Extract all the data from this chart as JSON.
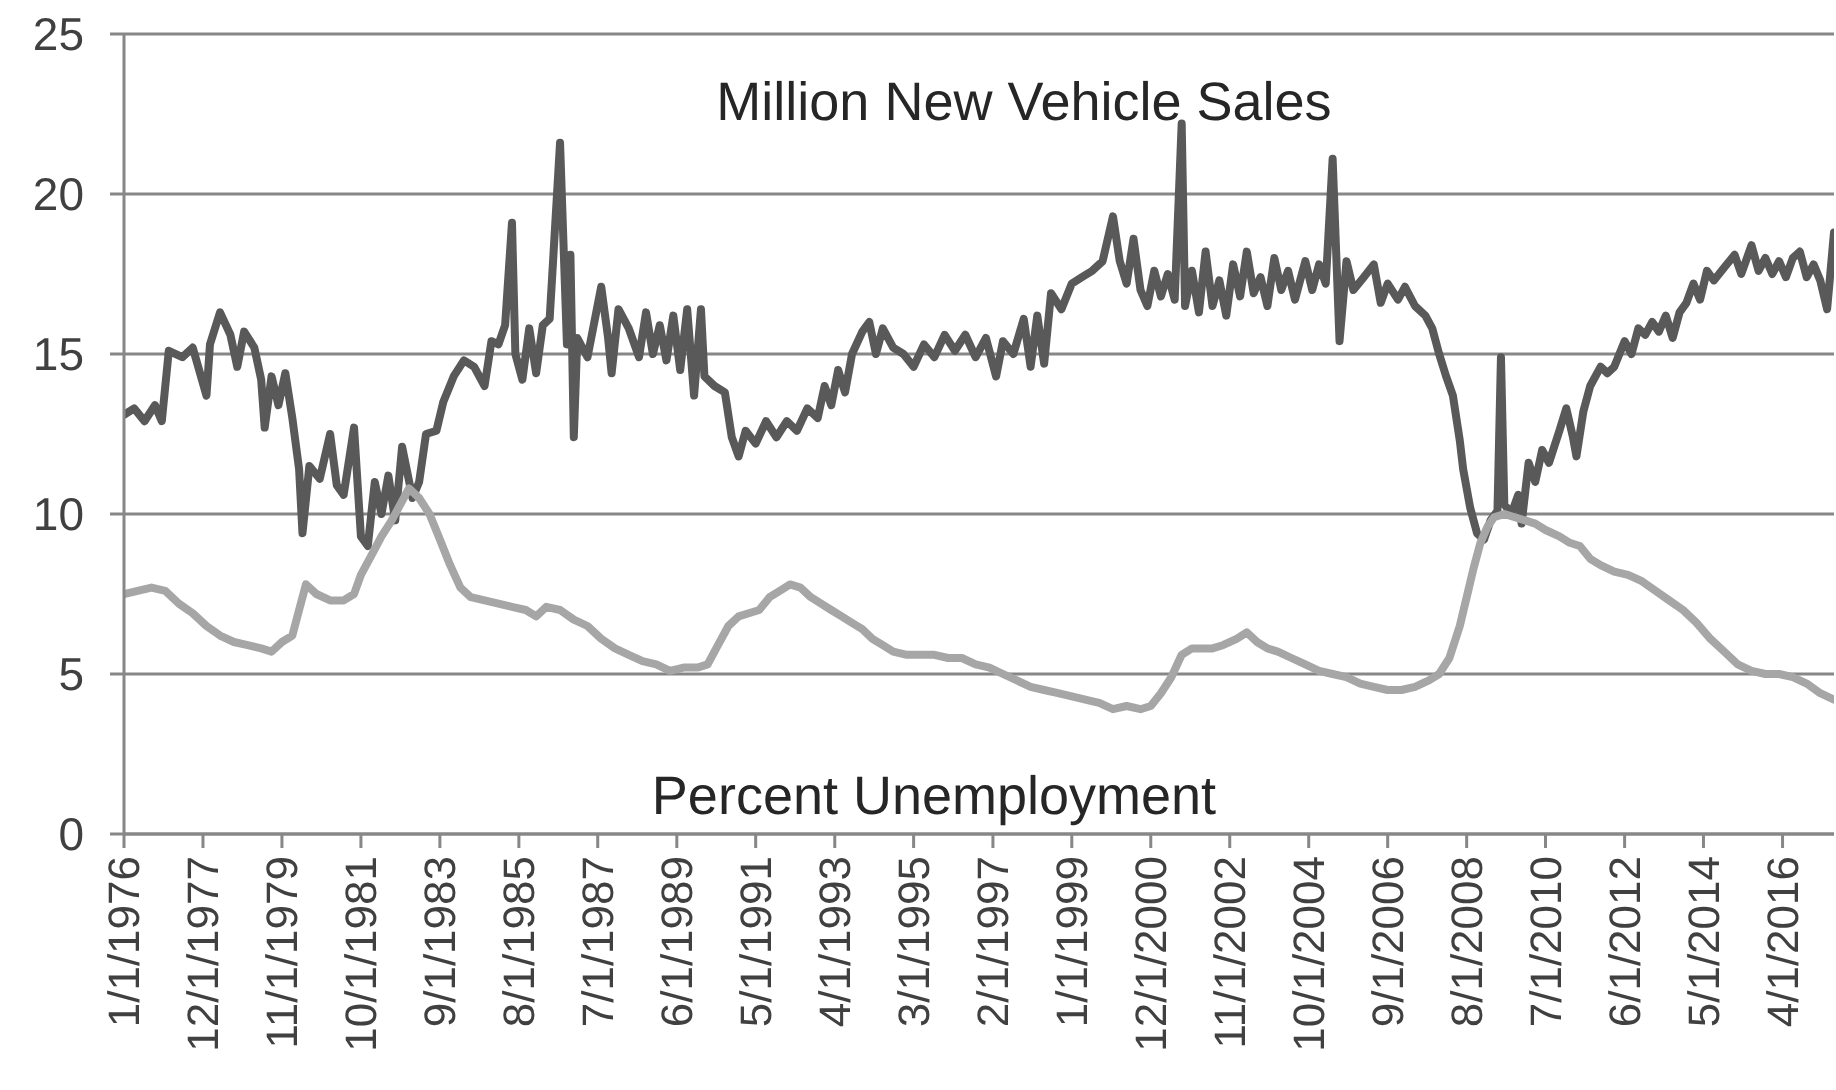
{
  "chart_data": {
    "type": "line",
    "xlim": [
      "1976-01",
      "2017-07"
    ],
    "xticks": [
      {
        "value": "1976-01",
        "label": "1/1/1976"
      },
      {
        "value": "1977-12",
        "label": "12/1/1977"
      },
      {
        "value": "1979-11",
        "label": "11/1/1979"
      },
      {
        "value": "1981-10",
        "label": "10/1/1981"
      },
      {
        "value": "1983-09",
        "label": "9/1/1983"
      },
      {
        "value": "1985-08",
        "label": "8/1/1985"
      },
      {
        "value": "1987-07",
        "label": "7/1/1987"
      },
      {
        "value": "1989-06",
        "label": "6/1/1989"
      },
      {
        "value": "1991-05",
        "label": "5/1/1991"
      },
      {
        "value": "1993-04",
        "label": "4/1/1993"
      },
      {
        "value": "1995-03",
        "label": "3/1/1995"
      },
      {
        "value": "1997-02",
        "label": "2/1/1997"
      },
      {
        "value": "1999-01",
        "label": "1/1/1999"
      },
      {
        "value": "2000-12",
        "label": "12/1/2000"
      },
      {
        "value": "2002-11",
        "label": "11/1/2002"
      },
      {
        "value": "2004-10",
        "label": "10/1/2004"
      },
      {
        "value": "2006-09",
        "label": "9/1/2006"
      },
      {
        "value": "2008-08",
        "label": "8/1/2008"
      },
      {
        "value": "2010-07",
        "label": "7/1/2010"
      },
      {
        "value": "2012-06",
        "label": "6/1/2012"
      },
      {
        "value": "2014-05",
        "label": "5/1/2014"
      },
      {
        "value": "2016-04",
        "label": "4/1/2016"
      }
    ],
    "ylim": [
      0,
      25
    ],
    "yticks": [
      0,
      5,
      10,
      15,
      20,
      25
    ],
    "grid": "y",
    "marker": "none",
    "series": [
      {
        "name": "Million New Vehicle Sales",
        "color": "#595959",
        "x": [
          "1976-01",
          "1976-04",
          "1976-07",
          "1976-10",
          "1976-12",
          "1977-02",
          "1977-06",
          "1977-09",
          "1978-01",
          "1978-02",
          "1978-05",
          "1978-08",
          "1978-10",
          "1978-12",
          "1979-03",
          "1979-05",
          "1979-06",
          "1979-08",
          "1979-10",
          "1979-12",
          "1980-02",
          "1980-04",
          "1980-05",
          "1980-07",
          "1980-10",
          "1981-01",
          "1981-03",
          "1981-05",
          "1981-08",
          "1981-10",
          "1981-12",
          "1982-02",
          "1982-04",
          "1982-06",
          "1982-08",
          "1982-10",
          "1983-01",
          "1983-03",
          "1983-05",
          "1983-08",
          "1983-10",
          "1984-01",
          "1984-04",
          "1984-07",
          "1984-10",
          "1984-12",
          "1985-02",
          "1985-04",
          "1985-06",
          "1985-07",
          "1985-09",
          "1985-11",
          "1986-01",
          "1986-03",
          "1986-05",
          "1986-08",
          "1986-10",
          "1986-11",
          "1986-12",
          "1987-01",
          "1987-04",
          "1987-08",
          "1987-10",
          "1987-11",
          "1988-01",
          "1988-04",
          "1988-07",
          "1988-09",
          "1988-11",
          "1989-01",
          "1989-03",
          "1989-05",
          "1989-07",
          "1989-09",
          "1989-11",
          "1990-01",
          "1990-02",
          "1990-05",
          "1990-08",
          "1990-10",
          "1990-12",
          "1991-02",
          "1991-05",
          "1991-08",
          "1991-11",
          "1992-02",
          "1992-05",
          "1992-08",
          "1992-11",
          "1993-01",
          "1993-03",
          "1993-05",
          "1993-07",
          "1993-09",
          "1993-12",
          "1994-02",
          "1994-04",
          "1994-06",
          "1994-09",
          "1994-12",
          "1995-03",
          "1995-06",
          "1995-09",
          "1995-12",
          "1996-03",
          "1996-06",
          "1996-09",
          "1996-12",
          "1997-03",
          "1997-05",
          "1997-08",
          "1997-11",
          "1998-01",
          "1998-03",
          "1998-05",
          "1998-07",
          "1998-10",
          "1999-01",
          "1999-04",
          "1999-07",
          "1999-10",
          "2000-01",
          "2000-03",
          "2000-05",
          "2000-07",
          "2000-09",
          "2000-11",
          "2001-01",
          "2001-03",
          "2001-05",
          "2001-07",
          "2001-09",
          "2001-10",
          "2001-12",
          "2002-02",
          "2002-04",
          "2002-06",
          "2002-08",
          "2002-10",
          "2002-12",
          "2003-02",
          "2003-04",
          "2003-06",
          "2003-08",
          "2003-10",
          "2003-12",
          "2004-02",
          "2004-04",
          "2004-06",
          "2004-09",
          "2004-11",
          "2005-01",
          "2005-03",
          "2005-05",
          "2005-07",
          "2005-09",
          "2005-11",
          "2006-02",
          "2006-05",
          "2006-07",
          "2006-09",
          "2006-12",
          "2007-02",
          "2007-05",
          "2007-08",
          "2007-10",
          "2007-12",
          "2008-02",
          "2008-04",
          "2008-06",
          "2008-07",
          "2008-09",
          "2008-11",
          "2009-01",
          "2009-03",
          "2009-05",
          "2009-06",
          "2009-07",
          "2009-09",
          "2009-11",
          "2009-12",
          "2010-02",
          "2010-04",
          "2010-06",
          "2010-08",
          "2010-11",
          "2011-01",
          "2011-03",
          "2011-04",
          "2011-06",
          "2011-08",
          "2011-11",
          "2012-01",
          "2012-03",
          "2012-06",
          "2012-08",
          "2012-10",
          "2012-12",
          "2013-02",
          "2013-04",
          "2013-06",
          "2013-08",
          "2013-10",
          "2013-12",
          "2014-02",
          "2014-04",
          "2014-06",
          "2014-08",
          "2014-11",
          "2015-02",
          "2015-04",
          "2015-07",
          "2015-09",
          "2015-11",
          "2016-01",
          "2016-03",
          "2016-05",
          "2016-07",
          "2016-09",
          "2016-11",
          "2017-01",
          "2017-03",
          "2017-05",
          "2017-07"
        ],
        "values": [
          13.1,
          13.3,
          12.9,
          13.4,
          12.9,
          15.1,
          14.9,
          15.2,
          13.7,
          15.3,
          16.3,
          15.6,
          14.6,
          15.7,
          15.2,
          14.2,
          12.7,
          14.3,
          13.4,
          14.4,
          13.0,
          11.4,
          9.4,
          11.5,
          11.1,
          12.5,
          10.9,
          10.6,
          12.7,
          9.3,
          9.0,
          11.0,
          10.0,
          11.2,
          9.8,
          12.1,
          10.5,
          11.0,
          12.5,
          12.6,
          13.5,
          14.3,
          14.8,
          14.6,
          14.0,
          15.4,
          15.3,
          15.9,
          19.1,
          15.0,
          14.2,
          15.8,
          14.4,
          15.9,
          16.1,
          21.6,
          15.3,
          18.1,
          12.4,
          15.5,
          14.9,
          17.1,
          15.5,
          14.4,
          16.4,
          15.8,
          14.9,
          16.3,
          15.0,
          15.9,
          14.8,
          16.2,
          14.5,
          16.4,
          13.7,
          16.4,
          14.3,
          14.0,
          13.8,
          12.4,
          11.8,
          12.6,
          12.2,
          12.9,
          12.4,
          12.9,
          12.6,
          13.3,
          13.0,
          14.0,
          13.4,
          14.5,
          13.8,
          15.0,
          15.7,
          16.0,
          15.0,
          15.8,
          15.2,
          15.0,
          14.6,
          15.3,
          14.9,
          15.6,
          15.1,
          15.6,
          14.9,
          15.5,
          14.3,
          15.4,
          15.0,
          16.1,
          14.6,
          16.2,
          14.7,
          16.9,
          16.4,
          17.2,
          17.4,
          17.6,
          17.9,
          19.3,
          17.9,
          17.2,
          18.6,
          17.0,
          16.5,
          17.6,
          16.8,
          17.5,
          16.7,
          22.2,
          16.5,
          17.6,
          16.3,
          18.2,
          16.5,
          17.3,
          16.2,
          17.8,
          16.8,
          18.2,
          16.9,
          17.4,
          16.5,
          18.0,
          17.0,
          17.6,
          16.7,
          17.9,
          17.0,
          17.8,
          17.2,
          21.1,
          15.4,
          17.9,
          17.0,
          17.4,
          17.8,
          16.6,
          17.2,
          16.7,
          17.1,
          16.5,
          16.2,
          15.8,
          15.0,
          14.3,
          13.7,
          12.3,
          11.4,
          10.2,
          9.4,
          9.2,
          9.8,
          10.1,
          14.9,
          10.3,
          10.0,
          10.6,
          9.7,
          11.6,
          11.0,
          12.0,
          11.6,
          12.6,
          13.3,
          12.4,
          11.8,
          13.2,
          14.0,
          14.6,
          14.4,
          14.6,
          15.4,
          15.0,
          15.8,
          15.6,
          16.0,
          15.7,
          16.2,
          15.5,
          16.3,
          16.6,
          17.2,
          16.7,
          17.6,
          17.3,
          17.7,
          18.1,
          17.5,
          18.4,
          17.6,
          18.0,
          17.5,
          17.9,
          17.4,
          18.0,
          18.2,
          17.4,
          17.8,
          17.3,
          16.4,
          18.8
        ]
      },
      {
        "name": "Percent Unemployment",
        "color": "#a6a6a6",
        "x": [
          "1976-01",
          "1976-05",
          "1976-09",
          "1977-01",
          "1977-05",
          "1977-09",
          "1978-01",
          "1978-05",
          "1978-09",
          "1979-01",
          "1979-05",
          "1979-08",
          "1979-11",
          "1980-02",
          "1980-04",
          "1980-06",
          "1980-09",
          "1981-01",
          "1981-05",
          "1981-08",
          "1981-10",
          "1982-01",
          "1982-04",
          "1982-07",
          "1982-10",
          "1982-12",
          "1983-03",
          "1983-06",
          "1983-09",
          "1983-12",
          "1984-03",
          "1984-06",
          "1984-10",
          "1985-02",
          "1985-06",
          "1985-10",
          "1986-01",
          "1986-04",
          "1986-08",
          "1986-12",
          "1987-04",
          "1987-08",
          "1987-12",
          "1988-04",
          "1988-08",
          "1988-12",
          "1989-04",
          "1989-08",
          "1989-12",
          "1990-03",
          "1990-06",
          "1990-09",
          "1990-12",
          "1991-03",
          "1991-06",
          "1991-09",
          "1991-12",
          "1992-03",
          "1992-06",
          "1992-09",
          "1992-12",
          "1993-03",
          "1993-06",
          "1993-09",
          "1993-12",
          "1994-03",
          "1994-06",
          "1994-09",
          "1995-01",
          "1995-05",
          "1995-09",
          "1996-01",
          "1996-05",
          "1996-09",
          "1997-01",
          "1997-05",
          "1997-09",
          "1998-01",
          "1998-05",
          "1998-09",
          "1999-01",
          "1999-05",
          "1999-09",
          "2000-01",
          "2000-05",
          "2000-09",
          "2000-12",
          "2001-03",
          "2001-06",
          "2001-09",
          "2001-12",
          "2002-03",
          "2002-06",
          "2002-09",
          "2003-01",
          "2003-04",
          "2003-07",
          "2003-10",
          "2004-01",
          "2004-05",
          "2004-09",
          "2005-01",
          "2005-05",
          "2005-09",
          "2006-01",
          "2006-05",
          "2006-09",
          "2007-01",
          "2007-05",
          "2007-09",
          "2007-12",
          "2008-03",
          "2008-06",
          "2008-08",
          "2008-10",
          "2008-12",
          "2009-02",
          "2009-04",
          "2009-07",
          "2009-10",
          "2010-01",
          "2010-04",
          "2010-07",
          "2010-11",
          "2011-02",
          "2011-05",
          "2011-08",
          "2011-11",
          "2012-03",
          "2012-07",
          "2012-11",
          "2013-03",
          "2013-07",
          "2013-11",
          "2014-03",
          "2014-07",
          "2014-11",
          "2015-03",
          "2015-07",
          "2015-11",
          "2016-03",
          "2016-07",
          "2016-11",
          "2017-03",
          "2017-07"
        ],
        "values": [
          7.5,
          7.6,
          7.7,
          7.6,
          7.2,
          6.9,
          6.5,
          6.2,
          6.0,
          5.9,
          5.8,
          5.7,
          6.0,
          6.2,
          7.0,
          7.8,
          7.5,
          7.3,
          7.3,
          7.5,
          8.1,
          8.7,
          9.3,
          9.8,
          10.4,
          10.8,
          10.5,
          10.0,
          9.2,
          8.4,
          7.7,
          7.4,
          7.3,
          7.2,
          7.1,
          7.0,
          6.8,
          7.1,
          7.0,
          6.7,
          6.5,
          6.1,
          5.8,
          5.6,
          5.4,
          5.3,
          5.1,
          5.2,
          5.2,
          5.3,
          5.9,
          6.5,
          6.8,
          6.9,
          7.0,
          7.4,
          7.6,
          7.8,
          7.7,
          7.4,
          7.2,
          7.0,
          6.8,
          6.6,
          6.4,
          6.1,
          5.9,
          5.7,
          5.6,
          5.6,
          5.6,
          5.5,
          5.5,
          5.3,
          5.2,
          5.0,
          4.8,
          4.6,
          4.5,
          4.4,
          4.3,
          4.2,
          4.1,
          3.9,
          4.0,
          3.9,
          4.0,
          4.4,
          4.9,
          5.6,
          5.8,
          5.8,
          5.8,
          5.9,
          6.1,
          6.3,
          6.0,
          5.8,
          5.7,
          5.5,
          5.3,
          5.1,
          5.0,
          4.9,
          4.7,
          4.6,
          4.5,
          4.5,
          4.6,
          4.8,
          5.0,
          5.5,
          6.5,
          7.4,
          8.3,
          9.1,
          9.6,
          9.9,
          10.0,
          9.9,
          9.8,
          9.7,
          9.5,
          9.3,
          9.1,
          9.0,
          8.6,
          8.4,
          8.2,
          8.1,
          7.9,
          7.6,
          7.3,
          7.0,
          6.6,
          6.1,
          5.7,
          5.3,
          5.1,
          5.0,
          5.0,
          4.9,
          4.7,
          4.4,
          4.2
        ]
      }
    ]
  }
}
